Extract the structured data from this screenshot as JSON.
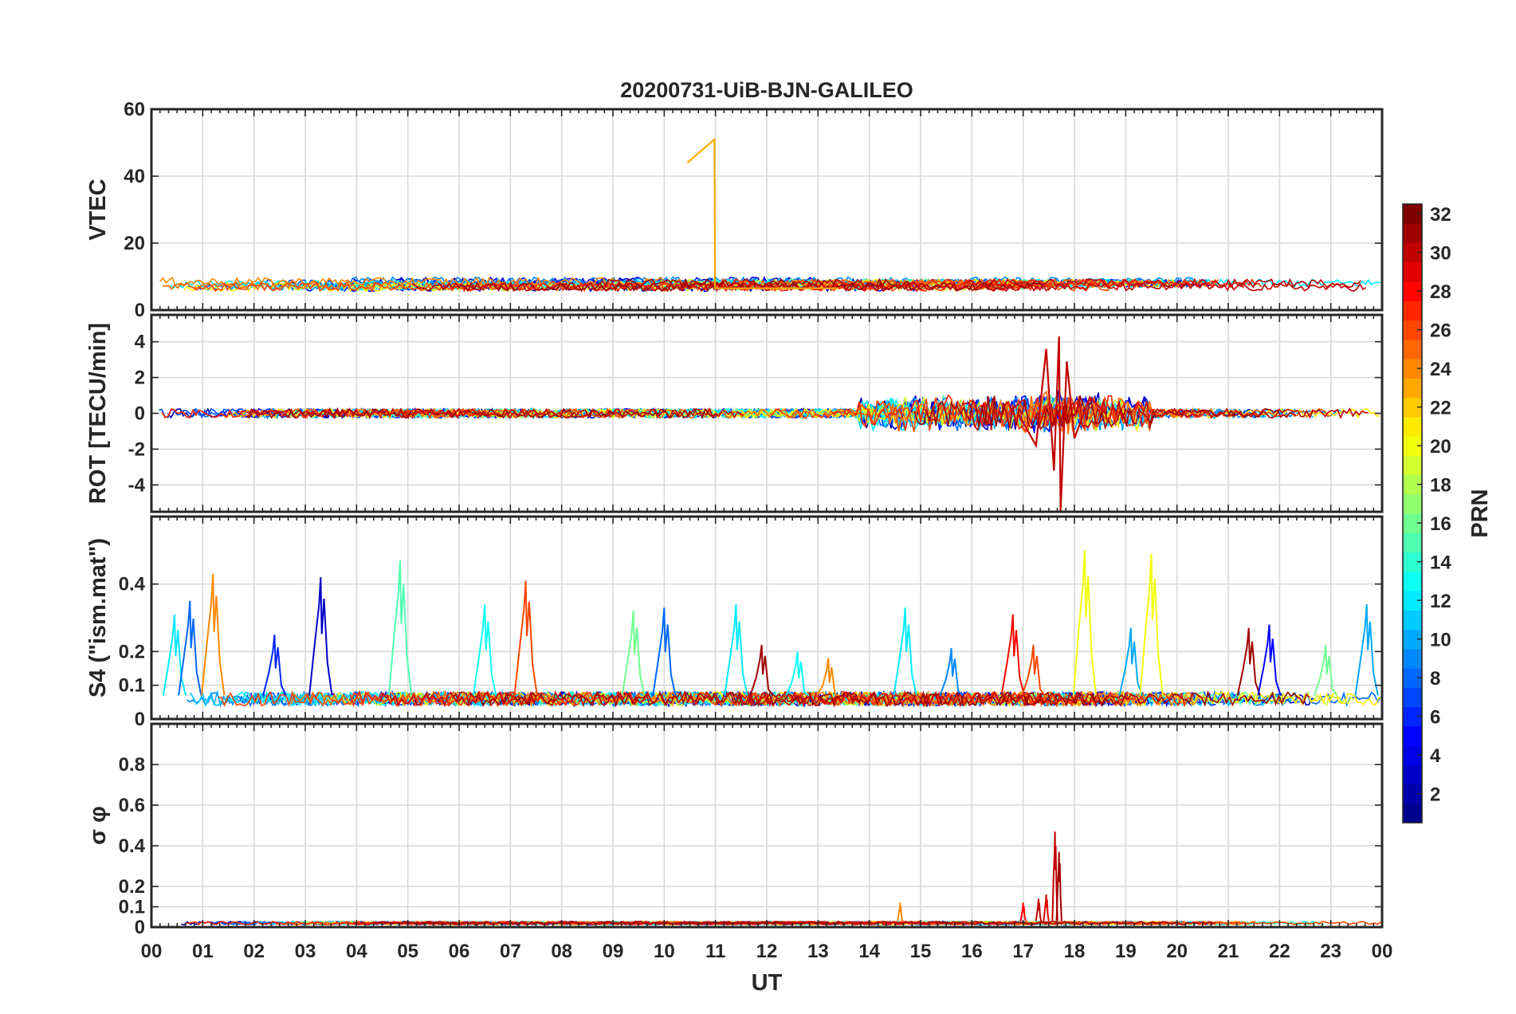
{
  "chart_data": {
    "type": "line",
    "title": "20200731-UiB-BJN-GALILEO",
    "xlabel": "UT",
    "x_range": [
      0,
      24
    ],
    "x_tick_labels": [
      "00",
      "01",
      "02",
      "03",
      "04",
      "05",
      "06",
      "07",
      "08",
      "09",
      "10",
      "11",
      "12",
      "13",
      "14",
      "15",
      "16",
      "17",
      "18",
      "19",
      "20",
      "21",
      "22",
      "23",
      "00"
    ],
    "grid": true,
    "colorbar": {
      "label": "PRN",
      "range": [
        1,
        32
      ],
      "tick_labels": [
        "2",
        "4",
        "6",
        "8",
        "10",
        "12",
        "14",
        "16",
        "18",
        "20",
        "22",
        "24",
        "26",
        "28",
        "30",
        "32"
      ],
      "colormap": [
        "#00008f",
        "#0000ff",
        "#0080ff",
        "#00ffff",
        "#80ff80",
        "#ffff00",
        "#ff8000",
        "#ff0000",
        "#800000"
      ]
    },
    "panels": [
      {
        "ylabel": "VTEC",
        "ylim": [
          0,
          60
        ],
        "y_ticks": [
          0,
          20,
          40,
          60
        ],
        "y_tick_labels": [
          "0",
          "20",
          "40",
          "60"
        ],
        "baseline": 8,
        "noise": 1.2,
        "highlight": {
          "prn": 23,
          "points": [
            [
              10.45,
              44
            ],
            [
              10.98,
              51
            ],
            [
              10.99,
              6.5
            ],
            [
              13.4,
              6.5
            ]
          ]
        }
      },
      {
        "ylabel": "ROT [TECU/min]",
        "ylim": [
          -5.5,
          5.5
        ],
        "y_ticks": [
          -4,
          -2,
          0,
          2,
          4
        ],
        "y_tick_labels": [
          "-4",
          "-2",
          "0",
          "2",
          "4"
        ],
        "baseline": 0,
        "noise": 0.25,
        "highlight": {
          "prn": 30,
          "points": [
            [
              16.9,
              0
            ],
            [
              17.25,
              -1.8
            ],
            [
              17.45,
              3.6
            ],
            [
              17.6,
              -3.2
            ],
            [
              17.7,
              4.3
            ],
            [
              17.73,
              -5.5
            ],
            [
              17.85,
              2.9
            ],
            [
              18.0,
              -1.4
            ],
            [
              18.3,
              0.9
            ],
            [
              18.6,
              0
            ]
          ]
        }
      },
      {
        "ylabel": "S4 (\"ism.mat\")",
        "ylim": [
          0,
          0.6
        ],
        "y_ticks": [
          0,
          0.1,
          0.2,
          0.4
        ],
        "y_tick_labels": [
          "0",
          "0.1",
          "0.2",
          "0.4"
        ],
        "baseline": 0.06,
        "noise": 0.02,
        "peaks": [
          {
            "x": 0.45,
            "y": 0.31,
            "prn": 12
          },
          {
            "x": 0.75,
            "y": 0.35,
            "prn": 8
          },
          {
            "x": 1.2,
            "y": 0.43,
            "prn": 24
          },
          {
            "x": 2.4,
            "y": 0.25,
            "prn": 6
          },
          {
            "x": 3.3,
            "y": 0.42,
            "prn": 3
          },
          {
            "x": 4.85,
            "y": 0.47,
            "prn": 15
          },
          {
            "x": 6.5,
            "y": 0.34,
            "prn": 13
          },
          {
            "x": 7.3,
            "y": 0.41,
            "prn": 26
          },
          {
            "x": 9.4,
            "y": 0.32,
            "prn": 16
          },
          {
            "x": 10.0,
            "y": 0.33,
            "prn": 8
          },
          {
            "x": 11.4,
            "y": 0.34,
            "prn": 12
          },
          {
            "x": 11.9,
            "y": 0.22,
            "prn": 31
          },
          {
            "x": 12.6,
            "y": 0.2,
            "prn": 13
          },
          {
            "x": 13.2,
            "y": 0.18,
            "prn": 24
          },
          {
            "x": 14.7,
            "y": 0.33,
            "prn": 12
          },
          {
            "x": 15.6,
            "y": 0.21,
            "prn": 9
          },
          {
            "x": 16.8,
            "y": 0.31,
            "prn": 28
          },
          {
            "x": 17.2,
            "y": 0.22,
            "prn": 26
          },
          {
            "x": 18.2,
            "y": 0.5,
            "prn": 20
          },
          {
            "x": 19.1,
            "y": 0.27,
            "prn": 10
          },
          {
            "x": 19.5,
            "y": 0.49,
            "prn": 20
          },
          {
            "x": 21.4,
            "y": 0.27,
            "prn": 31
          },
          {
            "x": 21.8,
            "y": 0.28,
            "prn": 5
          },
          {
            "x": 22.9,
            "y": 0.22,
            "prn": 16
          },
          {
            "x": 23.7,
            "y": 0.34,
            "prn": 10
          }
        ]
      },
      {
        "ylabel": "σ φ",
        "ylim": [
          0,
          1
        ],
        "y_ticks": [
          0,
          0.1,
          0.2,
          0.4,
          0.6,
          0.8
        ],
        "y_tick_labels": [
          "0",
          "0.1",
          "0.2",
          "0.4",
          "0.6",
          "0.8"
        ],
        "baseline": 0.02,
        "noise": 0.008,
        "peaks": [
          {
            "x": 17.0,
            "y": 0.12,
            "prn": 28
          },
          {
            "x": 17.3,
            "y": 0.14,
            "prn": 30
          },
          {
            "x": 17.45,
            "y": 0.16,
            "prn": 29
          },
          {
            "x": 17.62,
            "y": 0.47,
            "prn": 30
          },
          {
            "x": 17.7,
            "y": 0.37,
            "prn": 31
          },
          {
            "x": 14.6,
            "y": 0.12,
            "prn": 24
          }
        ]
      }
    ]
  }
}
